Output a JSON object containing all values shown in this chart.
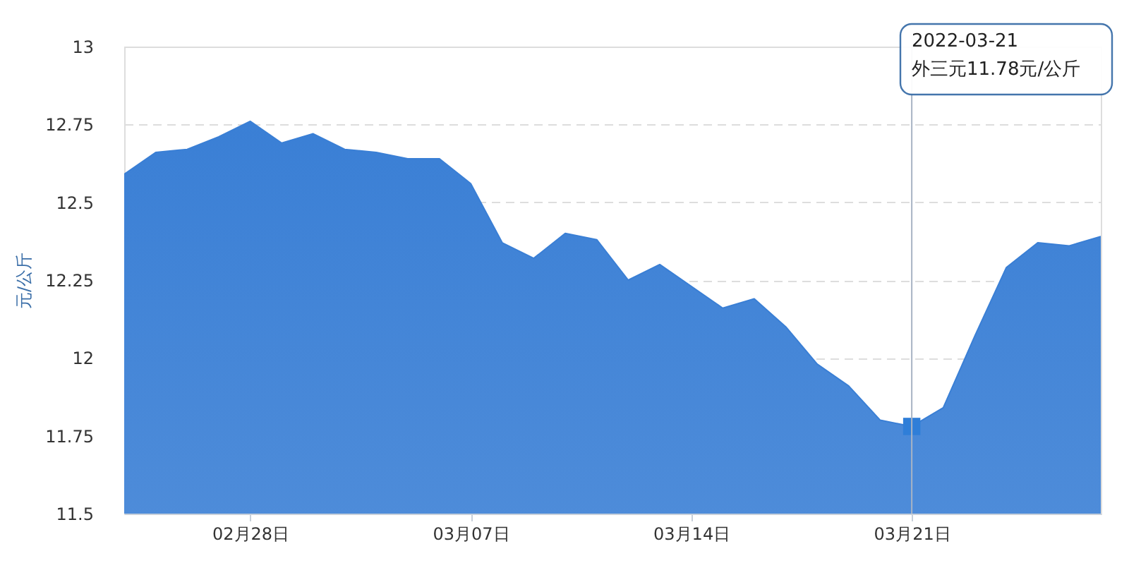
{
  "chart_data": {
    "type": "area",
    "ylabel": "元/公斤",
    "x": [
      "2022-02-24",
      "2022-02-25",
      "2022-02-26",
      "2022-02-27",
      "2022-02-28",
      "2022-03-01",
      "2022-03-02",
      "2022-03-03",
      "2022-03-04",
      "2022-03-05",
      "2022-03-06",
      "2022-03-07",
      "2022-03-08",
      "2022-03-09",
      "2022-03-10",
      "2022-03-11",
      "2022-03-12",
      "2022-03-13",
      "2022-03-14",
      "2022-03-15",
      "2022-03-16",
      "2022-03-17",
      "2022-03-18",
      "2022-03-19",
      "2022-03-20",
      "2022-03-21",
      "2022-03-22",
      "2022-03-23",
      "2022-03-24",
      "2022-03-25",
      "2022-03-26",
      "2022-03-27"
    ],
    "series": [
      {
        "color": "#3a7fd5",
        "values": [
          12.59,
          12.66,
          12.67,
          12.71,
          12.76,
          12.69,
          12.72,
          12.67,
          12.66,
          12.64,
          12.64,
          12.56,
          12.37,
          12.32,
          12.4,
          12.38,
          12.25,
          12.3,
          12.23,
          12.16,
          12.19,
          12.1,
          11.98,
          11.91,
          11.8,
          11.78,
          11.84,
          12.07,
          12.29,
          12.37,
          12.36,
          12.39
        ]
      },
      {
        "type": "scatter",
        "marker": "square",
        "color": "#2f7ed8",
        "x": [
          "2022-03-21"
        ],
        "values": [
          11.78
        ]
      }
    ],
    "xlim": [
      "2022-02-24",
      "2022-03-27"
    ],
    "xticks": [
      {
        "value": "2022-02-28",
        "label": "02月28日"
      },
      {
        "value": "2022-03-07",
        "label": "03月07日"
      },
      {
        "value": "2022-03-14",
        "label": "03月14日"
      },
      {
        "value": "2022-03-21",
        "label": "03月21日"
      }
    ],
    "ylim": [
      11.5,
      13
    ],
    "yticks": [
      11.5,
      11.75,
      12,
      12.25,
      12.5,
      12.75,
      13
    ],
    "grid": "y",
    "marker": "none",
    "line_style": "solid",
    "ref_lines": [
      {
        "axis": "x",
        "value": "2022-03-21",
        "color": "#a8b4c4"
      }
    ],
    "annotations": [
      "2022-03-21\n外三元11.78元/公斤"
    ]
  }
}
